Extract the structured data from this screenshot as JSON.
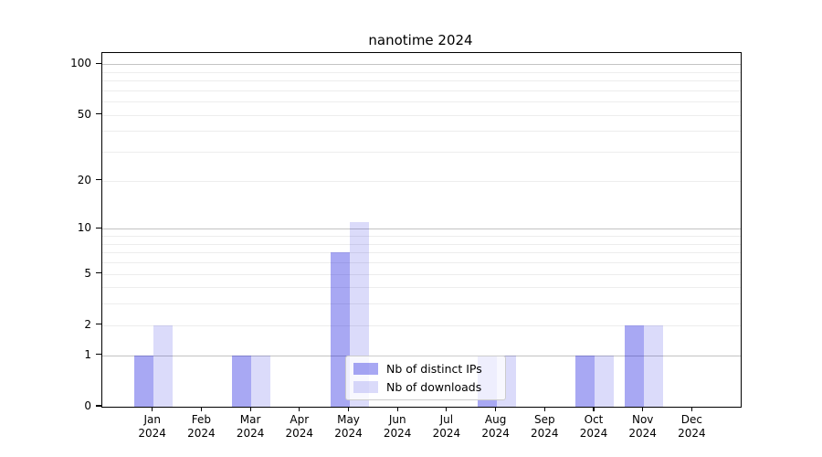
{
  "chart_data": {
    "type": "bar",
    "title": "nanotime 2024",
    "y_scale": "log1p",
    "categories": [
      "Jan 2024",
      "Feb 2024",
      "Mar 2024",
      "Apr 2024",
      "May 2024",
      "Jun 2024",
      "Jul 2024",
      "Aug 2024",
      "Sep 2024",
      "Oct 2024",
      "Nov 2024",
      "Dec 2024"
    ],
    "series": [
      {
        "name": "Nb of distinct IPs",
        "color": "rgba(0,0,220,0.34)",
        "values": [
          1,
          0,
          1,
          0,
          7,
          0,
          0,
          1,
          0,
          1,
          2,
          0
        ]
      },
      {
        "name": "Nb of downloads",
        "color": "rgba(0,0,220,0.14)",
        "values": [
          2,
          0,
          1,
          0,
          11,
          0,
          0,
          1,
          0,
          1,
          2,
          0
        ]
      }
    ],
    "xlabel": "",
    "ylabel": "",
    "ylim": [
      0,
      120
    ],
    "yticks": {
      "labels": [
        "100",
        "50",
        "20",
        "10",
        "5",
        "2",
        "1",
        "0"
      ],
      "values": [
        100,
        50,
        20,
        10,
        5,
        2,
        1,
        0
      ]
    },
    "major_gridlines": [
      1,
      10,
      100
    ],
    "minor_gridlines": [
      2,
      3,
      4,
      5,
      6,
      7,
      8,
      9,
      20,
      30,
      40,
      50,
      60,
      70,
      80,
      90
    ],
    "grid": true,
    "legend_position": "lower-center-inside"
  },
  "legend": {
    "items": [
      {
        "label": "Nb of distinct IPs"
      },
      {
        "label": "Nb of downloads"
      }
    ]
  },
  "colors": {
    "bar_distinct_ips": "rgba(0,0,220,0.34)",
    "bar_downloads": "rgba(0,0,220,0.14)",
    "grid_major": "#c3c3c3",
    "grid_minor": "#ededed",
    "axis": "#000000",
    "legend_border": "#cccccc",
    "legend_background": "rgba(255,255,255,0.8)",
    "text": "#000000"
  }
}
